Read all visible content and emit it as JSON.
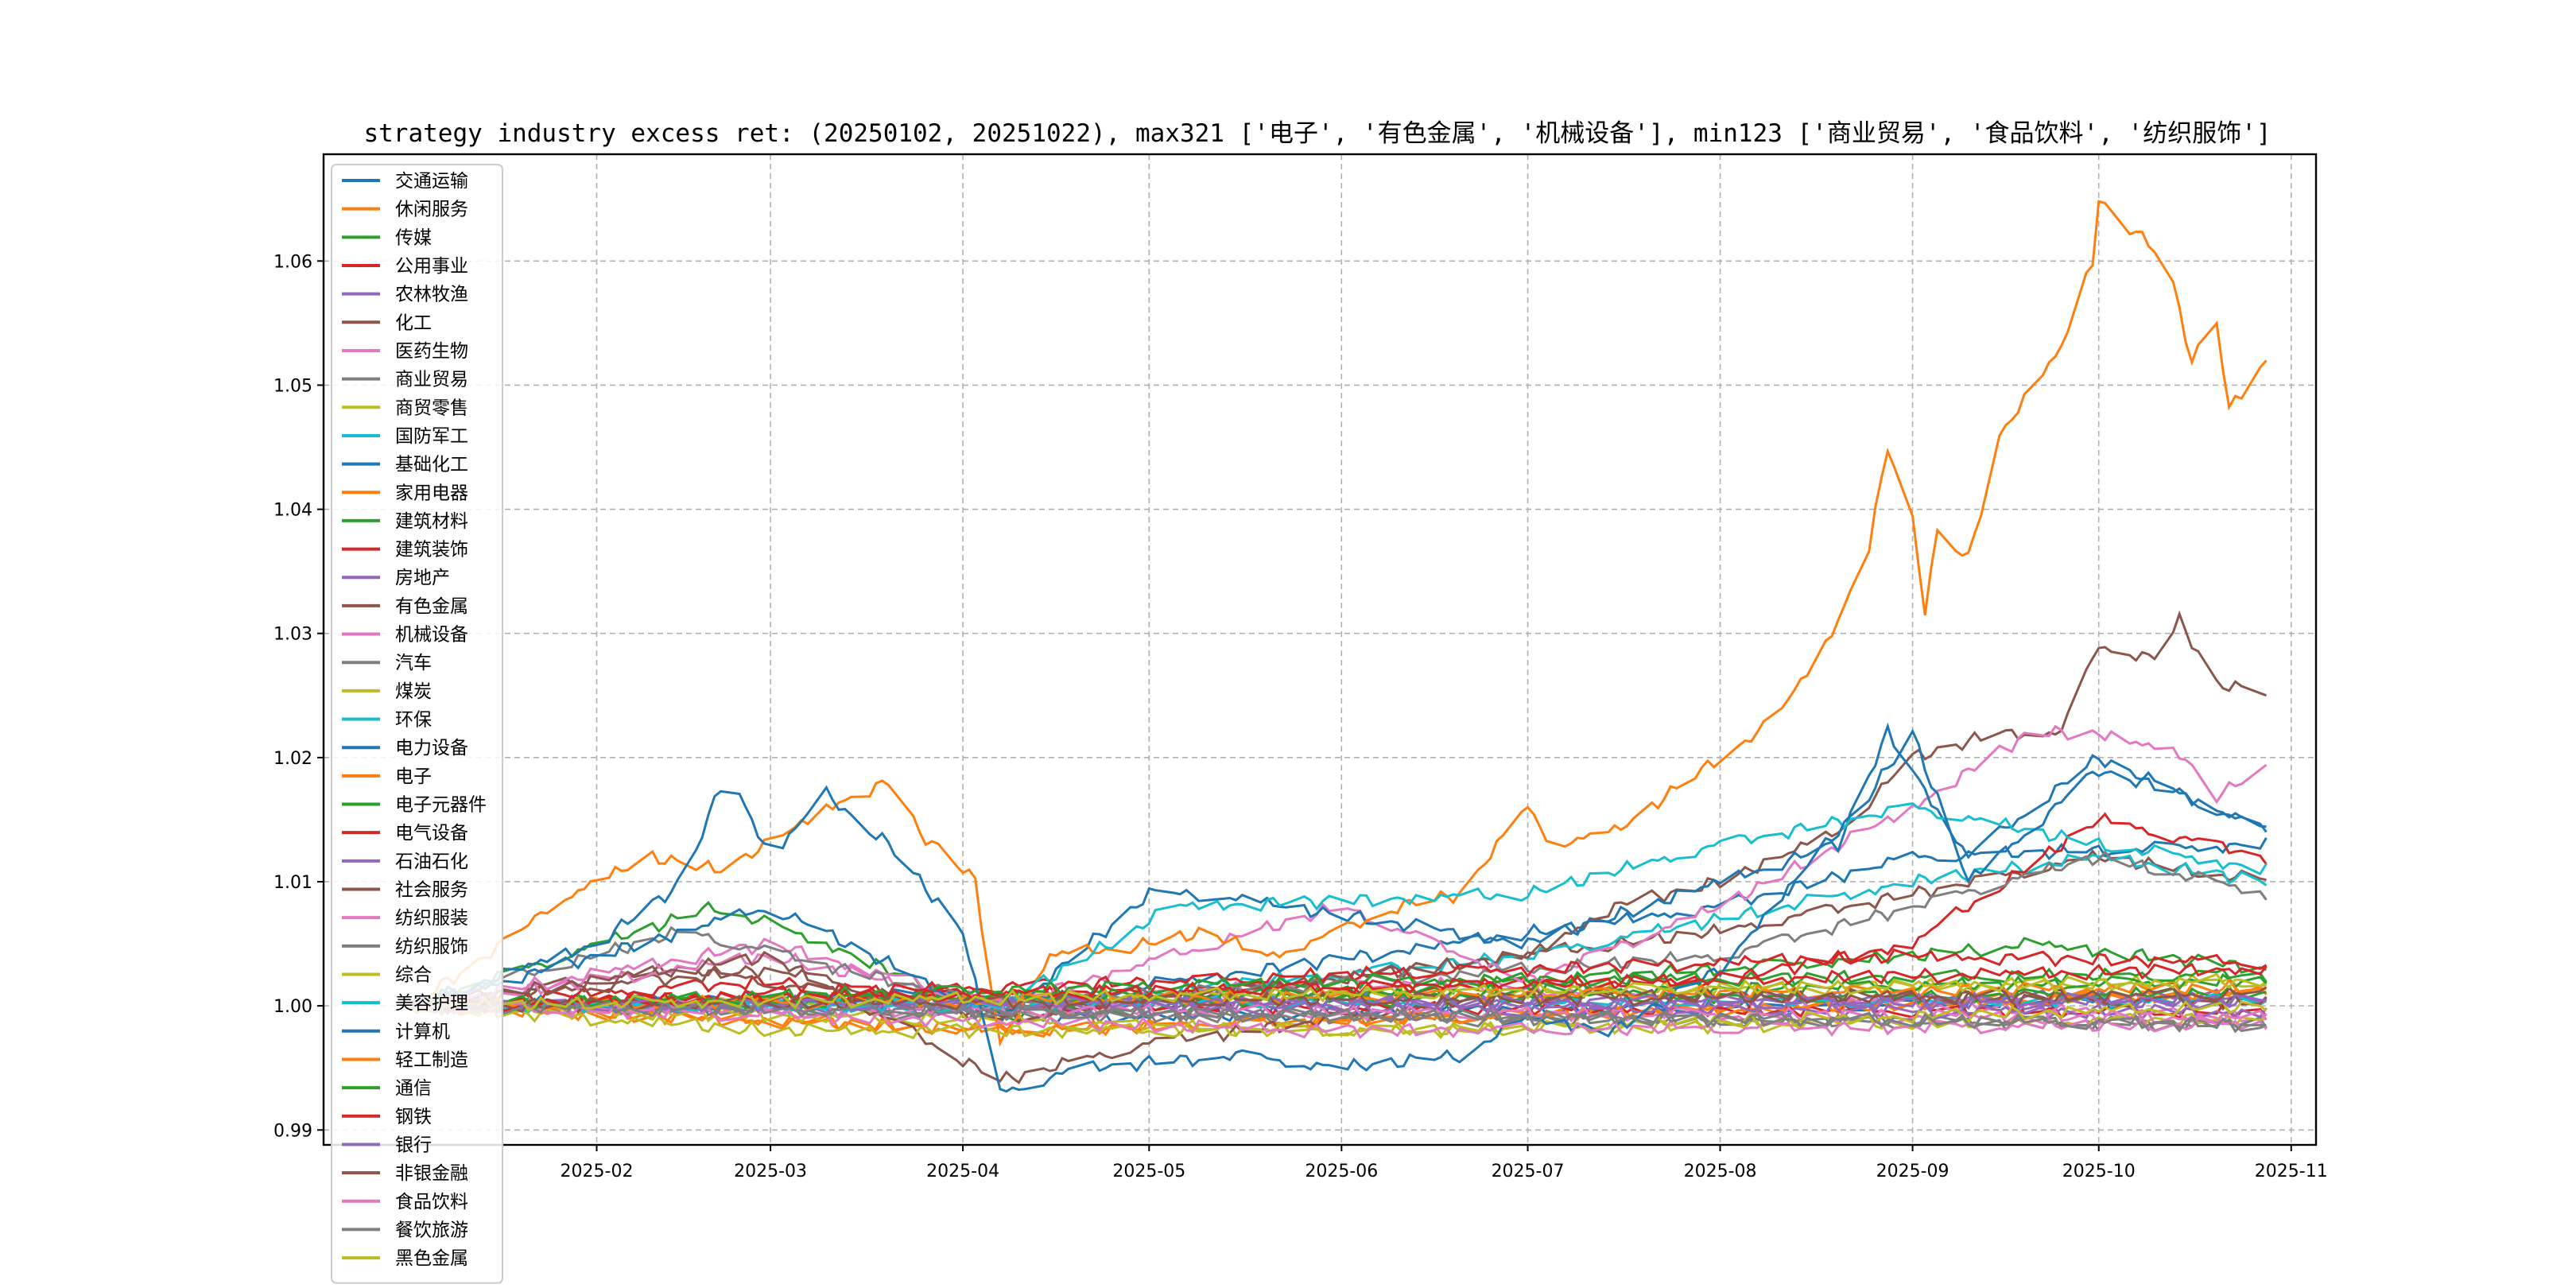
{
  "chart_data": {
    "type": "line",
    "title": "strategy industry excess ret: (20250102, 20251022), max321 ['电子', '有色金属', '机械设备'], min123 ['商业贸易', '食品饮料', '纺织服饰']",
    "xlabel": "",
    "ylabel": "",
    "ylim": [
      0.9888,
      1.0686
    ],
    "xlim": [
      "2024-12-19",
      "2025-11-05"
    ],
    "yticks": [
      0.99,
      1.0,
      1.01,
      1.02,
      1.03,
      1.04,
      1.05,
      1.06
    ],
    "ytick_labels": [
      "0.99",
      "1.00",
      "1.01",
      "1.02",
      "1.03",
      "1.04",
      "1.05",
      "1.06"
    ],
    "xticks": [
      "2025-02-01",
      "2025-03-01",
      "2025-04-01",
      "2025-05-01",
      "2025-06-01",
      "2025-07-01",
      "2025-08-01",
      "2025-09-01",
      "2025-10-01",
      "2025-11-01"
    ],
    "xtick_labels": [
      "2025-02",
      "2025-03",
      "2025-04",
      "2025-05",
      "2025-06",
      "2025-07",
      "2025-08",
      "2025-09",
      "2025-10",
      "2025-11"
    ],
    "grid": true,
    "legend_position": "upper-left",
    "colors": [
      "#1f77b4",
      "#ff7f0e",
      "#2ca02c",
      "#d62728",
      "#9467bd",
      "#8c564b",
      "#e377c2",
      "#7f7f7f",
      "#bcbd22",
      "#17becf"
    ],
    "series": [
      {
        "name": "交通运输",
        "points": [
          [
            "2025-01-02",
            1
          ],
          [
            "2025-04-03",
            1.001
          ],
          [
            "2025-04-07",
            0.999
          ],
          [
            "2025-10-28",
            1.0005
          ]
        ]
      },
      {
        "name": "休闲服务",
        "points": [
          [
            "2025-01-02",
            1
          ],
          [
            "2025-04-07",
            0.998
          ],
          [
            "2025-10-28",
            1.001
          ]
        ]
      },
      {
        "name": "传媒",
        "points": [
          [
            "2025-01-02",
            1
          ],
          [
            "2025-02-20",
            1.008
          ],
          [
            "2025-03-10",
            1.005
          ],
          [
            "2025-04-07",
            0.999
          ],
          [
            "2025-07-01",
            1.002
          ],
          [
            "2025-09-01",
            1.004
          ],
          [
            "2025-09-20",
            1.005
          ],
          [
            "2025-10-28",
            1.003
          ]
        ]
      },
      {
        "name": "公用事业",
        "points": [
          [
            "2025-01-02",
            1
          ],
          [
            "2025-03-01",
            1.002
          ],
          [
            "2025-04-07",
            1.0
          ],
          [
            "2025-10-28",
            0.9995
          ]
        ]
      },
      {
        "name": "农林牧渔",
        "points": [
          [
            "2025-01-02",
            1
          ],
          [
            "2025-10-28",
            1.0008
          ]
        ]
      },
      {
        "name": "化工",
        "points": [
          [
            "2025-01-02",
            1
          ],
          [
            "2025-02-15",
            1.003
          ],
          [
            "2025-04-07",
            0.999
          ],
          [
            "2025-08-01",
            1.006
          ],
          [
            "2025-10-01",
            1.012
          ],
          [
            "2025-10-28",
            1.01
          ]
        ]
      },
      {
        "name": "医药生物",
        "points": [
          [
            "2025-01-02",
            1
          ],
          [
            "2025-03-01",
            1.005
          ],
          [
            "2025-04-07",
            1.0
          ],
          [
            "2025-06-01",
            1.002
          ],
          [
            "2025-10-28",
            0.999
          ]
        ]
      },
      {
        "name": "商业贸易",
        "points": [
          [
            "2025-01-02",
            1
          ],
          [
            "2025-06-01",
            0.999
          ],
          [
            "2025-10-28",
            0.9985
          ]
        ]
      },
      {
        "name": "商贸零售",
        "points": [
          [
            "2025-01-02",
            1
          ],
          [
            "2025-10-28",
            1.002
          ]
        ]
      },
      {
        "name": "国防军工",
        "points": [
          [
            "2025-01-02",
            1
          ],
          [
            "2025-04-07",
            1.0
          ],
          [
            "2025-07-01",
            1.004
          ],
          [
            "2025-09-01",
            1.01
          ],
          [
            "2025-10-01",
            1.012
          ],
          [
            "2025-10-28",
            1.01
          ]
        ]
      },
      {
        "name": "基础化工",
        "points": [
          [
            "2025-01-02",
            1
          ],
          [
            "2025-04-07",
            1.0
          ],
          [
            "2025-08-01",
            1.008
          ],
          [
            "2025-09-01",
            1.012
          ],
          [
            "2025-10-28",
            1.013
          ]
        ]
      },
      {
        "name": "家用电器",
        "points": [
          [
            "2025-01-02",
            1
          ],
          [
            "2025-04-07",
            0.998
          ],
          [
            "2025-10-28",
            1.001
          ]
        ]
      },
      {
        "name": "建筑材料",
        "points": [
          [
            "2025-01-02",
            1
          ],
          [
            "2025-10-28",
            1.001
          ]
        ]
      },
      {
        "name": "建筑装饰",
        "points": [
          [
            "2025-01-02",
            1
          ],
          [
            "2025-08-01",
            1.002
          ],
          [
            "2025-09-01",
            1.005
          ],
          [
            "2025-10-01",
            1.015
          ],
          [
            "2025-10-28",
            1.012
          ]
        ]
      },
      {
        "name": "房地产",
        "points": [
          [
            "2025-01-02",
            1
          ],
          [
            "2025-10-28",
            0.9995
          ]
        ]
      },
      {
        "name": "有色金属",
        "points": [
          [
            "2025-01-02",
            1
          ],
          [
            "2025-03-01",
            1.003
          ],
          [
            "2025-04-07",
            0.999
          ],
          [
            "2025-07-01",
            1.004
          ],
          [
            "2025-07-15",
            1.008
          ],
          [
            "2025-08-01",
            1.01
          ],
          [
            "2025-08-20",
            1.014
          ],
          [
            "2025-09-01",
            1.02
          ],
          [
            "2025-09-15",
            1.022
          ],
          [
            "2025-09-25",
            1.022
          ],
          [
            "2025-10-01",
            1.029
          ],
          [
            "2025-10-10",
            1.028
          ],
          [
            "2025-10-14",
            1.031
          ],
          [
            "2025-10-20",
            1.026
          ],
          [
            "2025-10-28",
            1.025
          ]
        ]
      },
      {
        "name": "机械设备",
        "points": [
          [
            "2025-01-02",
            1
          ],
          [
            "2025-03-01",
            1.004
          ],
          [
            "2025-04-07",
            1.0
          ],
          [
            "2025-06-01",
            1.008
          ],
          [
            "2025-07-01",
            1.002
          ],
          [
            "2025-08-01",
            1.008
          ],
          [
            "2025-09-01",
            1.016
          ],
          [
            "2025-09-20",
            1.022
          ],
          [
            "2025-10-01",
            1.022
          ],
          [
            "2025-10-15",
            1.02
          ],
          [
            "2025-10-20",
            1.017
          ],
          [
            "2025-10-28",
            1.019
          ]
        ]
      },
      {
        "name": "汽车",
        "points": [
          [
            "2025-01-02",
            1
          ],
          [
            "2025-02-15",
            1.006
          ],
          [
            "2025-04-07",
            1.0
          ],
          [
            "2025-08-01",
            1.004
          ],
          [
            "2025-09-01",
            1.008
          ],
          [
            "2025-10-01",
            1.012
          ],
          [
            "2025-10-28",
            1.009
          ]
        ]
      },
      {
        "name": "煤炭",
        "points": [
          [
            "2025-01-02",
            1
          ],
          [
            "2025-06-01",
            0.998
          ],
          [
            "2025-10-28",
            0.999
          ]
        ]
      },
      {
        "name": "环保",
        "points": [
          [
            "2025-01-02",
            1
          ],
          [
            "2025-10-28",
            1.0005
          ]
        ]
      },
      {
        "name": "电力设备",
        "points": [
          [
            "2025-01-02",
            1
          ],
          [
            "2025-02-01",
            1.004
          ],
          [
            "2025-03-01",
            1.008
          ],
          [
            "2025-04-07",
            0.999
          ],
          [
            "2025-05-01",
            1.009
          ],
          [
            "2025-05-10",
            1.009
          ],
          [
            "2025-07-01",
            1.005
          ],
          [
            "2025-08-20",
            1.013
          ],
          [
            "2025-08-28",
            1.022
          ],
          [
            "2025-09-10",
            1.012
          ],
          [
            "2025-10-01",
            1.02
          ],
          [
            "2025-10-28",
            1.014
          ]
        ]
      },
      {
        "name": "电子",
        "points": [
          [
            "2025-01-02",
            1
          ],
          [
            "2025-01-20",
            1.006
          ],
          [
            "2025-01-24",
            1.008
          ],
          [
            "2025-02-01",
            1.01
          ],
          [
            "2025-02-10",
            1.012
          ],
          [
            "2025-02-20",
            1.011
          ],
          [
            "2025-03-01",
            1.013
          ],
          [
            "2025-03-10",
            1.016
          ],
          [
            "2025-03-20",
            1.018
          ],
          [
            "2025-03-25",
            1.014
          ],
          [
            "2025-04-01",
            1.011
          ],
          [
            "2025-04-03",
            1.01
          ],
          [
            "2025-04-07",
            0.997
          ],
          [
            "2025-04-15",
            1.004
          ],
          [
            "2025-05-01",
            1.005
          ],
          [
            "2025-05-10",
            1.006
          ],
          [
            "2025-05-20",
            1.004
          ],
          [
            "2025-06-01",
            1.006
          ],
          [
            "2025-06-10",
            1.008
          ],
          [
            "2025-06-20",
            1.009
          ],
          [
            "2025-07-01",
            1.016
          ],
          [
            "2025-07-05",
            1.013
          ],
          [
            "2025-07-15",
            1.014
          ],
          [
            "2025-08-01",
            1.02
          ],
          [
            "2025-08-10",
            1.023
          ],
          [
            "2025-08-20",
            1.031
          ],
          [
            "2025-08-25",
            1.037
          ],
          [
            "2025-08-28",
            1.045
          ],
          [
            "2025-09-01",
            1.039
          ],
          [
            "2025-09-03",
            1.032
          ],
          [
            "2025-09-05",
            1.038
          ],
          [
            "2025-09-10",
            1.036
          ],
          [
            "2025-09-15",
            1.046
          ],
          [
            "2025-09-25",
            1.053
          ],
          [
            "2025-09-30",
            1.06
          ],
          [
            "2025-10-01",
            1.065
          ],
          [
            "2025-10-12",
            1.06
          ],
          [
            "2025-10-16",
            1.052
          ],
          [
            "2025-10-20",
            1.055
          ],
          [
            "2025-10-22",
            1.048
          ],
          [
            "2025-10-28",
            1.052
          ]
        ]
      },
      {
        "name": "电子元器件",
        "points": [
          [
            "2025-01-02",
            1
          ],
          [
            "2025-10-28",
            1.002
          ]
        ]
      },
      {
        "name": "电气设备",
        "points": [
          [
            "2025-01-02",
            1
          ],
          [
            "2025-09-01",
            1.004
          ],
          [
            "2025-10-28",
            1.0035
          ]
        ]
      },
      {
        "name": "石油石化",
        "points": [
          [
            "2025-01-02",
            1
          ],
          [
            "2025-10-28",
            1.0003
          ]
        ]
      },
      {
        "name": "社会服务",
        "points": [
          [
            "2025-01-02",
            1
          ],
          [
            "2025-03-01",
            1.004
          ],
          [
            "2025-04-07",
            0.994
          ],
          [
            "2025-05-01",
            0.997
          ],
          [
            "2025-07-01",
            1.001
          ],
          [
            "2025-10-28",
            1.0003
          ]
        ]
      },
      {
        "name": "纺织服装",
        "points": [
          [
            "2025-01-02",
            1
          ],
          [
            "2025-10-28",
            0.999
          ]
        ]
      },
      {
        "name": "纺织服饰",
        "points": [
          [
            "2025-01-02",
            1
          ],
          [
            "2025-10-28",
            0.9985
          ]
        ]
      },
      {
        "name": "综合",
        "points": [
          [
            "2025-01-02",
            1
          ],
          [
            "2025-03-01",
            0.998
          ],
          [
            "2025-06-15",
            0.998
          ],
          [
            "2025-10-28",
            1.0
          ]
        ]
      },
      {
        "name": "美容护理",
        "points": [
          [
            "2025-01-02",
            1
          ],
          [
            "2025-04-07",
            1.0
          ],
          [
            "2025-05-05",
            1.008
          ],
          [
            "2025-07-01",
            1.009
          ],
          [
            "2025-08-01",
            1.013
          ],
          [
            "2025-09-01",
            1.016
          ],
          [
            "2025-10-01",
            1.013
          ],
          [
            "2025-10-28",
            1.011
          ]
        ]
      },
      {
        "name": "计算机",
        "points": [
          [
            "2025-01-02",
            1
          ],
          [
            "2025-02-01",
            1.005
          ],
          [
            "2025-02-15",
            1.01
          ],
          [
            "2025-02-22",
            1.019
          ],
          [
            "2025-03-01",
            1.012
          ],
          [
            "2025-03-10",
            1.017
          ],
          [
            "2025-03-20",
            1.013
          ],
          [
            "2025-04-01",
            1.006
          ],
          [
            "2025-04-07",
            0.993
          ],
          [
            "2025-04-20",
            0.995
          ],
          [
            "2025-05-15",
            0.996
          ],
          [
            "2025-06-01",
            0.995
          ],
          [
            "2025-06-20",
            0.996
          ],
          [
            "2025-07-01",
            0.999
          ],
          [
            "2025-07-15",
            0.998
          ],
          [
            "2025-08-01",
            1.003
          ],
          [
            "2025-08-25",
            1.017
          ],
          [
            "2025-09-01",
            1.022
          ],
          [
            "2025-09-10",
            1.01
          ],
          [
            "2025-10-01",
            1.019
          ],
          [
            "2025-10-15",
            1.017
          ],
          [
            "2025-10-28",
            1.014
          ]
        ]
      },
      {
        "name": "轻工制造",
        "points": [
          [
            "2025-01-02",
            1
          ],
          [
            "2025-10-28",
            1.0015
          ]
        ]
      },
      {
        "name": "通信",
        "points": [
          [
            "2025-01-02",
            1
          ],
          [
            "2025-06-01",
            1.002
          ],
          [
            "2025-10-28",
            1.0025
          ]
        ]
      },
      {
        "name": "钢铁",
        "points": [
          [
            "2025-01-02",
            1
          ],
          [
            "2025-10-28",
            1.003
          ]
        ]
      },
      {
        "name": "银行",
        "points": [
          [
            "2025-01-02",
            1
          ],
          [
            "2025-10-28",
            1.0005
          ]
        ]
      },
      {
        "name": "非银金融",
        "points": [
          [
            "2025-01-02",
            1
          ],
          [
            "2025-10-28",
            1.001
          ]
        ]
      },
      {
        "name": "食品饮料",
        "points": [
          [
            "2025-01-02",
            1
          ],
          [
            "2025-06-01",
            0.998
          ],
          [
            "2025-10-28",
            0.9985
          ]
        ]
      },
      {
        "name": "餐饮旅游",
        "points": [
          [
            "2025-01-02",
            1
          ],
          [
            "2025-10-28",
            0.9985
          ]
        ]
      },
      {
        "name": "黑色金属",
        "points": [
          [
            "2025-01-02",
            1
          ],
          [
            "2025-10-28",
            1.002
          ]
        ]
      }
    ]
  }
}
